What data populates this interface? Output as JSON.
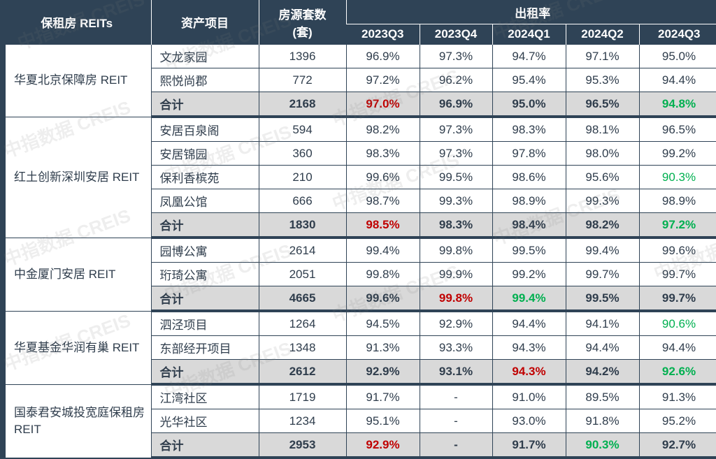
{
  "colors": {
    "header_bg": "#2f4356",
    "total_bg": "#d9d9d9",
    "red": "#c00000",
    "green": "#00b050",
    "text": "#2f3d4c"
  },
  "header": {
    "reit": "保租房 REITs",
    "asset": "资产项目",
    "units_line1": "房源套数",
    "units_line2": "(套)",
    "occupancy": "出租率",
    "quarters": [
      "2023Q3",
      "2023Q4",
      "2024Q1",
      "2024Q2",
      "2024Q3"
    ]
  },
  "watermark": "中指数据 CREIS",
  "groups": [
    {
      "reit": "华夏北京保障房 REIT",
      "rows": [
        {
          "asset": "文龙家园",
          "units": "1396",
          "rates": [
            "96.9%",
            "97.3%",
            "94.7%",
            "97.1%",
            "95.0%"
          ],
          "colors": [
            "",
            "",
            "",
            "",
            ""
          ]
        },
        {
          "asset": "熙悦尚郡",
          "units": "772",
          "rates": [
            "97.2%",
            "96.2%",
            "95.4%",
            "95.3%",
            "94.4%"
          ],
          "colors": [
            "",
            "",
            "",
            "",
            ""
          ]
        },
        {
          "asset": "合计",
          "units": "2168",
          "rates": [
            "97.0%",
            "96.9%",
            "95.0%",
            "96.5%",
            "94.8%"
          ],
          "colors": [
            "red",
            "",
            "",
            "",
            "green"
          ],
          "total": true
        }
      ]
    },
    {
      "reit": "红土创新深圳安居 REIT",
      "rows": [
        {
          "asset": "安居百泉阁",
          "units": "594",
          "rates": [
            "98.2%",
            "97.3%",
            "98.3%",
            "98.1%",
            "96.5%"
          ],
          "colors": [
            "",
            "",
            "",
            "",
            ""
          ]
        },
        {
          "asset": "安居锦园",
          "units": "360",
          "rates": [
            "98.3%",
            "97.3%",
            "97.8%",
            "98.0%",
            "99.2%"
          ],
          "colors": [
            "",
            "",
            "",
            "",
            ""
          ]
        },
        {
          "asset": "保利香槟苑",
          "units": "210",
          "rates": [
            "99.6%",
            "99.5%",
            "98.6%",
            "95.6%",
            "90.3%"
          ],
          "colors": [
            "",
            "",
            "",
            "",
            "green"
          ]
        },
        {
          "asset": "凤凰公馆",
          "units": "666",
          "rates": [
            "98.7%",
            "99.3%",
            "98.9%",
            "99.3%",
            "98.9%"
          ],
          "colors": [
            "",
            "",
            "",
            "",
            ""
          ]
        },
        {
          "asset": "合计",
          "units": "1830",
          "rates": [
            "98.5%",
            "98.3%",
            "98.4%",
            "98.2%",
            "97.2%"
          ],
          "colors": [
            "red",
            "",
            "",
            "",
            "green"
          ],
          "total": true
        }
      ]
    },
    {
      "reit": "中金厦门安居 REIT",
      "rows": [
        {
          "asset": "园博公寓",
          "units": "2614",
          "rates": [
            "99.4%",
            "99.8%",
            "99.5%",
            "99.4%",
            "99.6%"
          ],
          "colors": [
            "",
            "",
            "",
            "",
            ""
          ]
        },
        {
          "asset": "珩琦公寓",
          "units": "2051",
          "rates": [
            "99.8%",
            "99.9%",
            "99.2%",
            "99.7%",
            "99.7%"
          ],
          "colors": [
            "",
            "",
            "",
            "",
            ""
          ]
        },
        {
          "asset": "合计",
          "units": "4665",
          "rates": [
            "99.6%",
            "99.8%",
            "99.4%",
            "99.5%",
            "99.7%"
          ],
          "colors": [
            "",
            "red",
            "green",
            "",
            ""
          ],
          "total": true
        }
      ]
    },
    {
      "reit": "华夏基金华润有巢 REIT",
      "rows": [
        {
          "asset": "泗泾项目",
          "units": "1264",
          "rates": [
            "94.5%",
            "92.9%",
            "94.4%",
            "94.1%",
            "90.6%"
          ],
          "colors": [
            "",
            "",
            "",
            "",
            "green"
          ]
        },
        {
          "asset": "东部经开项目",
          "units": "1348",
          "rates": [
            "91.3%",
            "93.3%",
            "94.3%",
            "94.4%",
            "94.4%"
          ],
          "colors": [
            "",
            "",
            "",
            "",
            ""
          ]
        },
        {
          "asset": "合计",
          "units": "2612",
          "rates": [
            "92.9%",
            "93.1%",
            "94.3%",
            "94.2%",
            "92.6%"
          ],
          "colors": [
            "",
            "",
            "red",
            "",
            "green"
          ],
          "total": true
        }
      ]
    },
    {
      "reit": "国泰君安城投宽庭保租房 REIT",
      "rows": [
        {
          "asset": "江湾社区",
          "units": "1719",
          "rates": [
            "91.7%",
            "-",
            "91.0%",
            "89.5%",
            "91.3%"
          ],
          "colors": [
            "",
            "",
            "",
            "",
            ""
          ]
        },
        {
          "asset": "光华社区",
          "units": "1234",
          "rates": [
            "95.1%",
            "-",
            "93.0%",
            "91.8%",
            "95.2%"
          ],
          "colors": [
            "",
            "",
            "",
            "",
            ""
          ]
        },
        {
          "asset": "合计",
          "units": "2953",
          "rates": [
            "92.9%",
            "-",
            "91.7%",
            "90.3%",
            "92.7%"
          ],
          "colors": [
            "red",
            "",
            "",
            "green",
            ""
          ],
          "total": true
        }
      ]
    }
  ]
}
